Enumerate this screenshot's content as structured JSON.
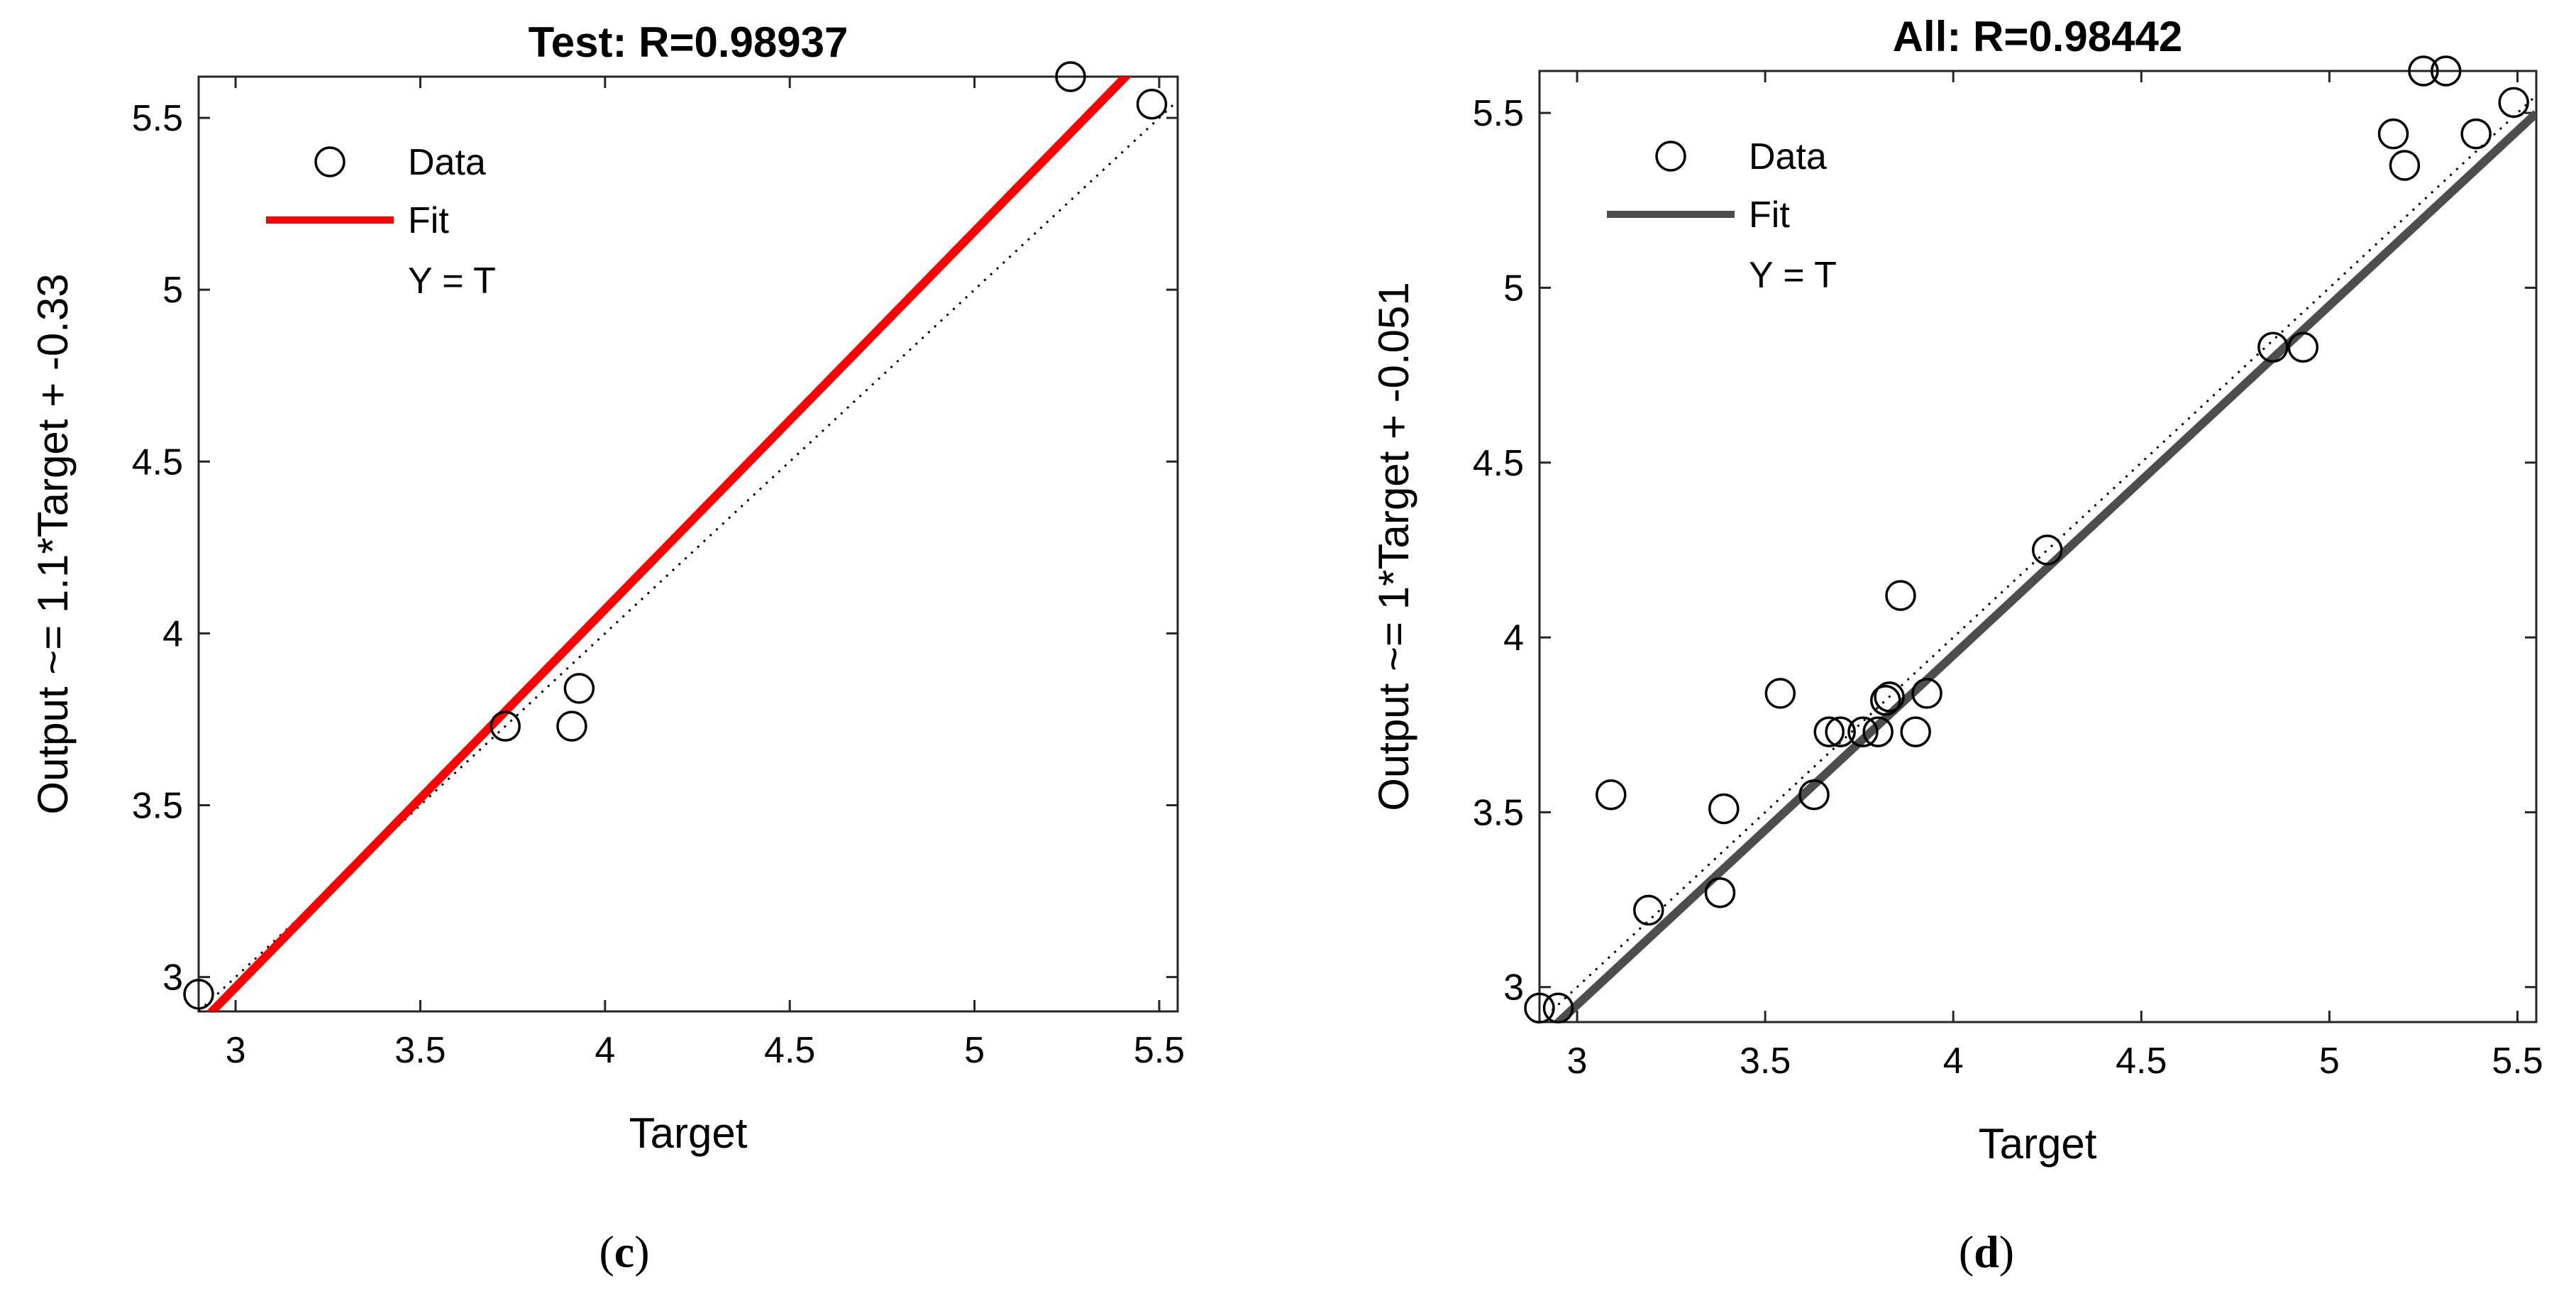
{
  "chart_data": [
    {
      "type": "scatter",
      "panel_label": "c",
      "title": "Test: R=0.98937",
      "xlabel": "Target",
      "ylabel": "Output ~= 1.1*Target + -0.33",
      "xlim": [
        2.9,
        5.55
      ],
      "ylim": [
        2.9,
        5.62
      ],
      "xticks": [
        3,
        3.5,
        4,
        4.5,
        5,
        5.5
      ],
      "yticks": [
        3,
        3.5,
        4,
        4.5,
        5,
        5.5
      ],
      "grid": false,
      "legend_position": "top-left",
      "legend": [
        "Data",
        "Fit",
        "Y = T"
      ],
      "fit_color": "#ff0000",
      "fit": {
        "slope": 1.1,
        "intercept": -0.33
      },
      "points": [
        {
          "x": 2.9,
          "y": 2.95
        },
        {
          "x": 3.73,
          "y": 3.73
        },
        {
          "x": 3.91,
          "y": 3.73
        },
        {
          "x": 3.93,
          "y": 3.84
        },
        {
          "x": 5.26,
          "y": 5.62
        },
        {
          "x": 5.48,
          "y": 5.54
        }
      ]
    },
    {
      "type": "scatter",
      "panel_label": "d",
      "title": "All: R=0.98442",
      "xlabel": "Target",
      "ylabel": "Output ~= 1*Target + -0.051",
      "xlim": [
        2.9,
        5.55
      ],
      "ylim": [
        2.9,
        5.62
      ],
      "xticks": [
        3,
        3.5,
        4,
        4.5,
        5,
        5.5
      ],
      "yticks": [
        3,
        3.5,
        4,
        4.5,
        5,
        5.5
      ],
      "grid": false,
      "legend_position": "top-left",
      "legend": [
        "Data",
        "Fit",
        "Y = T"
      ],
      "fit_color": "#4d4d4d",
      "fit": {
        "slope": 1.0,
        "intercept": -0.051
      },
      "points": [
        {
          "x": 2.9,
          "y": 2.94
        },
        {
          "x": 2.95,
          "y": 2.94
        },
        {
          "x": 3.09,
          "y": 3.55
        },
        {
          "x": 3.19,
          "y": 3.22
        },
        {
          "x": 3.38,
          "y": 3.27
        },
        {
          "x": 3.39,
          "y": 3.51
        },
        {
          "x": 3.54,
          "y": 3.84
        },
        {
          "x": 3.63,
          "y": 3.55
        },
        {
          "x": 3.67,
          "y": 3.73
        },
        {
          "x": 3.7,
          "y": 3.73
        },
        {
          "x": 3.76,
          "y": 3.73
        },
        {
          "x": 3.8,
          "y": 3.73
        },
        {
          "x": 3.82,
          "y": 3.82
        },
        {
          "x": 3.83,
          "y": 3.83
        },
        {
          "x": 3.86,
          "y": 4.12
        },
        {
          "x": 3.9,
          "y": 3.73
        },
        {
          "x": 3.93,
          "y": 3.84
        },
        {
          "x": 4.25,
          "y": 4.25
        },
        {
          "x": 4.85,
          "y": 4.83
        },
        {
          "x": 4.93,
          "y": 4.83
        },
        {
          "x": 5.17,
          "y": 5.44
        },
        {
          "x": 5.2,
          "y": 5.35
        },
        {
          "x": 5.25,
          "y": 5.62
        },
        {
          "x": 5.31,
          "y": 5.62
        },
        {
          "x": 5.39,
          "y": 5.44
        },
        {
          "x": 5.49,
          "y": 5.53
        }
      ]
    }
  ]
}
